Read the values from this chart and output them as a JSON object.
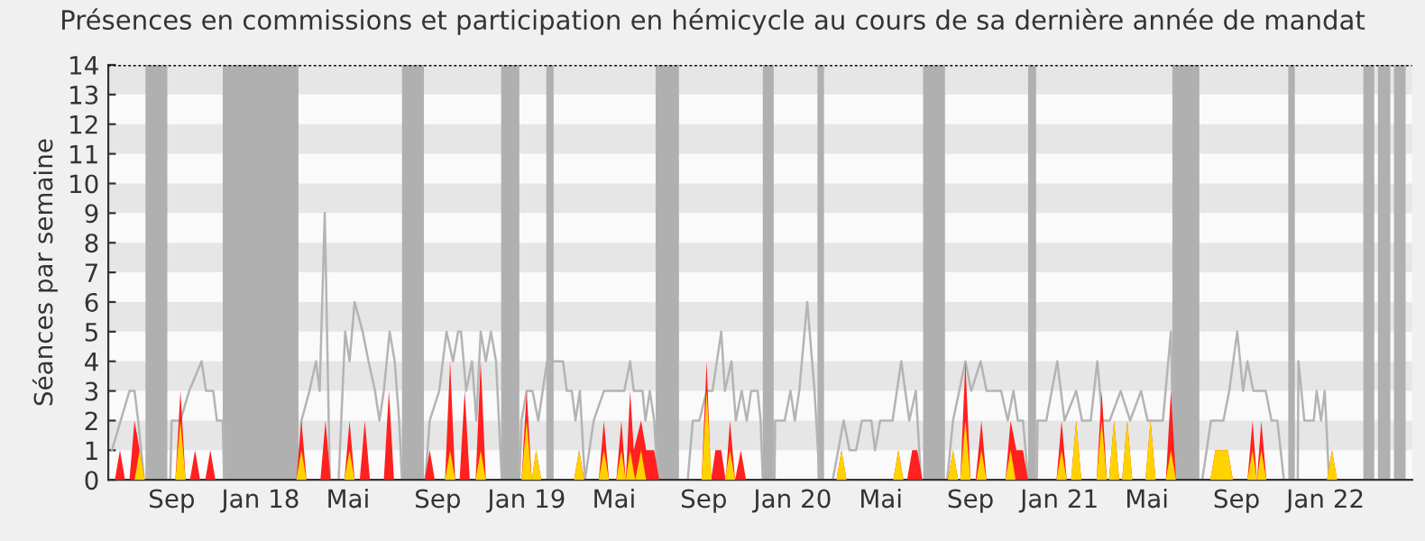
{
  "chart_data": {
    "type": "area",
    "title": "Présences en commissions et participation en hémicycle au cours de sa dernière année de mandat",
    "ylabel": "Séances par semaine",
    "xlim": [
      "2017-06-06",
      "2022-04-30"
    ],
    "ylim": [
      0,
      14
    ],
    "yticks": [
      0,
      1,
      2,
      3,
      4,
      5,
      6,
      7,
      8,
      9,
      10,
      11,
      12,
      13,
      14
    ],
    "xticks": [
      {
        "value": "2017-09-01",
        "label": "Sep"
      },
      {
        "value": "2018-01-01",
        "label": "Jan 18"
      },
      {
        "value": "2018-05-01",
        "label": "Mai"
      },
      {
        "value": "2018-09-01",
        "label": "Sep"
      },
      {
        "value": "2019-01-01",
        "label": "Jan 19"
      },
      {
        "value": "2019-05-01",
        "label": "Mai"
      },
      {
        "value": "2019-09-01",
        "label": "Sep"
      },
      {
        "value": "2020-01-01",
        "label": "Jan 20"
      },
      {
        "value": "2020-05-01",
        "label": "Mai"
      },
      {
        "value": "2020-09-01",
        "label": "Sep"
      },
      {
        "value": "2021-01-01",
        "label": "Jan 21"
      },
      {
        "value": "2021-05-01",
        "label": "Mai"
      },
      {
        "value": "2021-09-01",
        "label": "Sep"
      },
      {
        "value": "2022-01-01",
        "label": "Jan 22"
      }
    ],
    "bands": [
      {
        "axis": "y",
        "from": 1,
        "to": 2,
        "color": "#e6e6e6"
      },
      {
        "axis": "y",
        "from": 3,
        "to": 4,
        "color": "#e6e6e6"
      },
      {
        "axis": "y",
        "from": 5,
        "to": 6,
        "color": "#e6e6e6"
      },
      {
        "axis": "y",
        "from": 7,
        "to": 8,
        "color": "#e6e6e6"
      },
      {
        "axis": "y",
        "from": 9,
        "to": 10,
        "color": "#e6e6e6"
      },
      {
        "axis": "y",
        "from": 11,
        "to": 12,
        "color": "#e6e6e6"
      },
      {
        "axis": "y",
        "from": 13,
        "to": 14,
        "color": "#e6e6e6"
      },
      {
        "axis": "x",
        "from": "2017-07-27",
        "to": "2017-08-26",
        "color": "#b0b0b0"
      },
      {
        "axis": "x",
        "from": "2017-11-10",
        "to": "2018-02-22",
        "color": "#b0b0b0"
      },
      {
        "axis": "x",
        "from": "2018-07-14",
        "to": "2018-08-13",
        "color": "#b0b0b0"
      },
      {
        "axis": "x",
        "from": "2018-11-27",
        "to": "2018-12-22",
        "color": "#b0b0b0"
      },
      {
        "axis": "x",
        "from": "2019-01-28",
        "to": "2019-02-07",
        "color": "#b0b0b0"
      },
      {
        "axis": "x",
        "from": "2019-06-27",
        "to": "2019-07-29",
        "color": "#b0b0b0"
      },
      {
        "axis": "x",
        "from": "2019-11-21",
        "to": "2019-12-06",
        "color": "#b0b0b0"
      },
      {
        "axis": "x",
        "from": "2020-02-04",
        "to": "2020-02-13",
        "color": "#b0b0b0"
      },
      {
        "axis": "x",
        "from": "2020-06-28",
        "to": "2020-07-28",
        "color": "#b0b0b0"
      },
      {
        "axis": "x",
        "from": "2020-11-19",
        "to": "2020-11-30",
        "color": "#b0b0b0"
      },
      {
        "axis": "x",
        "from": "2021-06-05",
        "to": "2021-07-12",
        "color": "#b0b0b0"
      },
      {
        "axis": "x",
        "from": "2021-11-11",
        "to": "2021-11-20",
        "color": "#b0b0b0"
      },
      {
        "axis": "x",
        "from": "2022-02-22",
        "to": "2022-03-09",
        "color": "#b0b0b0"
      },
      {
        "axis": "x",
        "from": "2022-03-14",
        "to": "2022-03-31",
        "color": "#b0b0b0"
      },
      {
        "axis": "x",
        "from": "2022-04-05",
        "to": "2022-04-21",
        "color": "#b0b0b0"
      }
    ],
    "series": [
      {
        "type": "line",
        "color": "#b4b4b4",
        "x": [
          "2017-06-11",
          "2017-06-23",
          "2017-07-05",
          "2017-07-12",
          "2017-07-17",
          "2017-07-25",
          "2017-08-30",
          "2017-09-01",
          "2017-09-13",
          "2017-09-25",
          "2017-10-12",
          "2017-10-18",
          "2017-10-28",
          "2017-11-02",
          "2017-11-10",
          "2017-11-12",
          "2018-02-22",
          "2018-02-26",
          "2018-03-09",
          "2018-03-18",
          "2018-03-23",
          "2018-03-30",
          "2018-04-06",
          "2018-04-18",
          "2018-04-27",
          "2018-05-03",
          "2018-05-10",
          "2018-05-21",
          "2018-05-29",
          "2018-06-07",
          "2018-06-13",
          "2018-06-19",
          "2018-06-27",
          "2018-07-04",
          "2018-07-10",
          "2018-07-14",
          "2018-08-15",
          "2018-08-21",
          "2018-09-03",
          "2018-09-13",
          "2018-09-22",
          "2018-09-29",
          "2018-10-03",
          "2018-10-10",
          "2018-10-18",
          "2018-10-24",
          "2018-10-30",
          "2018-11-06",
          "2018-11-13",
          "2018-11-20",
          "2018-11-28",
          "2018-12-22",
          "2018-12-25",
          "2019-01-01",
          "2019-01-09",
          "2019-01-17",
          "2019-01-29",
          "2019-02-11",
          "2019-02-20",
          "2019-02-25",
          "2019-03-04",
          "2019-03-09",
          "2019-03-15",
          "2019-03-22",
          "2019-04-03",
          "2019-04-17",
          "2019-05-15",
          "2019-05-23",
          "2019-05-28",
          "2019-06-09",
          "2019-06-13",
          "2019-06-19",
          "2019-06-25",
          "2019-06-30",
          "2019-08-10",
          "2019-08-17",
          "2019-08-26",
          "2019-09-05",
          "2019-09-13",
          "2019-09-25",
          "2019-09-30",
          "2019-10-09",
          "2019-10-15",
          "2019-10-23",
          "2019-10-30",
          "2019-11-05",
          "2019-11-14",
          "2019-11-18",
          "2019-11-21",
          "2019-12-07",
          "2019-12-08",
          "2019-12-21",
          "2019-12-29",
          "2020-01-04",
          "2020-01-10",
          "2020-01-21",
          "2020-01-31",
          "2020-02-07",
          "2020-02-25",
          "2020-03-11",
          "2020-03-19",
          "2020-03-28",
          "2020-04-05",
          "2020-04-18",
          "2020-04-23",
          "2020-04-30",
          "2020-05-17",
          "2020-05-29",
          "2020-06-09",
          "2020-06-18",
          "2020-06-25",
          "2020-07-31",
          "2020-08-08",
          "2020-08-25",
          "2020-09-02",
          "2020-09-15",
          "2020-09-23",
          "2020-10-13",
          "2020-10-22",
          "2020-10-30",
          "2020-11-05",
          "2020-11-12",
          "2020-11-19",
          "2020-12-01",
          "2020-12-02",
          "2020-12-14",
          "2020-12-29",
          "2021-01-08",
          "2021-01-24",
          "2021-02-01",
          "2021-02-13",
          "2021-02-22",
          "2021-03-01",
          "2021-03-11",
          "2021-03-26",
          "2021-04-08",
          "2021-04-23",
          "2021-05-02",
          "2021-05-23",
          "2021-06-03",
          "2021-06-07",
          "2021-07-16",
          "2021-07-28",
          "2021-08-14",
          "2021-08-22",
          "2021-09-02",
          "2021-09-10",
          "2021-09-16",
          "2021-09-24",
          "2021-10-11",
          "2021-10-19",
          "2021-10-27",
          "2021-11-05",
          "2021-11-24",
          "2021-11-25",
          "2021-12-03",
          "2021-12-16",
          "2021-12-20",
          "2021-12-26",
          "2021-12-31",
          "2022-01-06"
        ],
        "values": [
          1,
          2,
          3,
          3,
          2,
          0,
          0,
          2,
          2,
          3,
          4,
          3,
          3,
          2,
          2,
          0,
          0,
          2,
          3,
          4,
          3,
          9,
          0,
          0,
          5,
          4,
          6,
          5,
          4,
          3,
          2,
          3,
          5,
          4,
          2,
          0,
          0,
          2,
          3,
          5,
          4,
          5,
          5,
          3,
          4,
          2,
          5,
          4,
          5,
          4,
          0,
          0,
          2,
          3,
          3,
          2,
          4,
          4,
          4,
          3,
          3,
          2,
          3,
          0,
          2,
          3,
          3,
          4,
          3,
          3,
          2,
          3,
          2,
          0,
          0,
          2,
          2,
          3,
          3,
          5,
          3,
          4,
          2,
          3,
          2,
          3,
          3,
          2,
          0,
          0,
          2,
          2,
          3,
          2,
          3,
          6,
          3,
          0,
          0,
          2,
          1,
          1,
          2,
          2,
          1,
          2,
          2,
          4,
          2,
          3,
          0,
          0,
          2,
          4,
          3,
          4,
          3,
          3,
          2,
          3,
          2,
          2,
          0,
          0,
          2,
          2,
          4,
          2,
          3,
          2,
          2,
          4,
          2,
          2,
          3,
          2,
          3,
          2,
          2,
          5,
          0,
          0,
          2,
          2,
          3,
          5,
          3,
          4,
          3,
          3,
          2,
          2,
          0,
          0,
          4,
          2,
          2,
          3,
          2,
          3,
          0
        ]
      },
      {
        "color": "#ff2020",
        "x": [
          "2017-06-15",
          "2017-06-22",
          "2017-06-29",
          "2017-07-05",
          "2017-07-12",
          "2017-07-19",
          "2017-07-26",
          "2017-09-06",
          "2017-09-13",
          "2017-09-20",
          "2017-09-26",
          "2017-10-03",
          "2017-10-10",
          "2017-10-17",
          "2017-10-24",
          "2017-10-31",
          "2018-02-19",
          "2018-02-26",
          "2018-03-05",
          "2018-03-24",
          "2018-03-31",
          "2018-04-07",
          "2018-04-26",
          "2018-05-03",
          "2018-05-10",
          "2018-05-17",
          "2018-05-24",
          "2018-05-31",
          "2018-06-19",
          "2018-06-26",
          "2018-07-03",
          "2018-08-14",
          "2018-08-21",
          "2018-08-28",
          "2018-09-11",
          "2018-09-18",
          "2018-09-25",
          "2018-10-01",
          "2018-10-08",
          "2018-10-15",
          "2018-10-23",
          "2018-10-30",
          "2018-11-06",
          "2018-12-25",
          "2019-01-01",
          "2019-01-08",
          "2019-01-14",
          "2019-01-21",
          "2019-03-07",
          "2019-03-14",
          "2019-03-21",
          "2019-04-10",
          "2019-04-17",
          "2019-04-24",
          "2019-05-04",
          "2019-05-11",
          "2019-05-17",
          "2019-05-23",
          "2019-05-28",
          "2019-06-07",
          "2019-06-14",
          "2019-06-25",
          "2019-07-02",
          "2019-08-29",
          "2019-09-05",
          "2019-09-11",
          "2019-09-17",
          "2019-09-25",
          "2019-10-01",
          "2019-10-07",
          "2019-10-14",
          "2019-10-22",
          "2019-10-29",
          "2020-03-01",
          "2020-03-08",
          "2020-03-15",
          "2020-05-18",
          "2020-05-25",
          "2020-06-01",
          "2020-06-06",
          "2020-06-13",
          "2020-06-20",
          "2020-06-27",
          "2020-08-01",
          "2020-08-08",
          "2020-08-15",
          "2020-08-18",
          "2020-08-25",
          "2020-09-01",
          "2020-09-08",
          "2020-09-16",
          "2020-09-23",
          "2020-10-19",
          "2020-10-26",
          "2020-11-03",
          "2020-11-12",
          "2020-11-19",
          "2020-12-28",
          "2021-01-04",
          "2021-01-11",
          "2021-01-17",
          "2021-01-24",
          "2021-01-31",
          "2021-02-21",
          "2021-02-28",
          "2021-03-07",
          "2021-03-10",
          "2021-03-17",
          "2021-03-24",
          "2021-03-28",
          "2021-04-04",
          "2021-04-11",
          "2021-04-29",
          "2021-05-06",
          "2021-05-13",
          "2021-05-27",
          "2021-06-03",
          "2021-06-10",
          "2021-07-27",
          "2021-08-03",
          "2021-08-20",
          "2021-08-27",
          "2021-09-16",
          "2021-09-23",
          "2021-09-29",
          "2021-10-05",
          "2021-10-12",
          "2022-01-03",
          "2022-01-10",
          "2022-01-17"
        ],
        "values": [
          0,
          1,
          0,
          0,
          2,
          1,
          0,
          0,
          3,
          0,
          0,
          1,
          0,
          0,
          1,
          0,
          0,
          2,
          0,
          0,
          2,
          0,
          0,
          2,
          0,
          0,
          2,
          0,
          0,
          3,
          0,
          0,
          1,
          0,
          0,
          4,
          0,
          0,
          3,
          0,
          0,
          4,
          0,
          0,
          3,
          0,
          1,
          0,
          0,
          1,
          0,
          0,
          2,
          0,
          0,
          2,
          0,
          3,
          1,
          2,
          1,
          1,
          0,
          0,
          4,
          0,
          1,
          1,
          0,
          2,
          0,
          1,
          0,
          0,
          1,
          0,
          0,
          1,
          0,
          0,
          1,
          1,
          0,
          0,
          1,
          0,
          0,
          4,
          0,
          0,
          2,
          0,
          0,
          2,
          1,
          1,
          0,
          0,
          2,
          0,
          0,
          2,
          0,
          0,
          3,
          0,
          0,
          2,
          0,
          0,
          2,
          0,
          0,
          2,
          0,
          0,
          3,
          0,
          0,
          1,
          1,
          0,
          0,
          2,
          0,
          2,
          0,
          0,
          1,
          0
        ]
      },
      {
        "color": "#ffd200",
        "x": [
          "2017-07-12",
          "2017-07-19",
          "2017-07-26",
          "2017-09-06",
          "2017-09-13",
          "2017-09-20",
          "2018-02-19",
          "2018-02-26",
          "2018-03-05",
          "2018-04-26",
          "2018-05-03",
          "2018-05-10",
          "2018-09-11",
          "2018-09-18",
          "2018-09-25",
          "2018-10-23",
          "2018-10-30",
          "2018-11-06",
          "2018-12-25",
          "2019-01-01",
          "2019-01-08",
          "2019-01-14",
          "2019-01-21",
          "2019-03-07",
          "2019-03-14",
          "2019-03-21",
          "2019-04-10",
          "2019-04-17",
          "2019-04-24",
          "2019-05-04",
          "2019-05-11",
          "2019-05-17",
          "2019-05-23",
          "2019-05-30",
          "2019-06-07",
          "2019-06-14",
          "2019-08-29",
          "2019-09-05",
          "2019-09-12",
          "2019-09-30",
          "2019-10-07",
          "2019-10-14",
          "2020-03-01",
          "2020-03-08",
          "2020-03-15",
          "2020-05-18",
          "2020-05-25",
          "2020-06-01",
          "2020-08-01",
          "2020-08-08",
          "2020-08-15",
          "2020-08-18",
          "2020-08-25",
          "2020-09-01",
          "2020-09-09",
          "2020-09-16",
          "2020-09-23",
          "2020-10-19",
          "2020-10-26",
          "2020-11-02",
          "2020-12-28",
          "2021-01-04",
          "2021-01-11",
          "2021-01-17",
          "2021-01-24",
          "2021-01-31",
          "2021-02-21",
          "2021-02-28",
          "2021-03-07",
          "2021-03-10",
          "2021-03-17",
          "2021-03-24",
          "2021-03-28",
          "2021-04-04",
          "2021-04-11",
          "2021-04-29",
          "2021-05-06",
          "2021-05-13",
          "2021-05-27",
          "2021-06-03",
          "2021-06-10",
          "2021-07-27",
          "2021-08-03",
          "2021-08-20",
          "2021-08-27",
          "2021-09-16",
          "2021-09-23",
          "2021-09-29",
          "2021-10-05",
          "2021-10-12",
          "2022-01-03",
          "2022-01-10",
          "2022-01-17"
        ],
        "values": [
          0,
          1,
          0,
          0,
          2,
          0,
          0,
          1,
          0,
          0,
          1,
          0,
          0,
          1,
          0,
          0,
          1,
          0,
          0,
          2,
          0,
          1,
          0,
          0,
          1,
          0,
          0,
          1,
          0,
          0,
          1,
          0,
          1,
          0,
          1,
          0,
          0,
          3,
          0,
          0,
          1,
          0,
          0,
          1,
          0,
          0,
          1,
          0,
          0,
          1,
          0,
          0,
          2,
          0,
          0,
          1,
          0,
          0,
          1,
          0,
          0,
          1,
          0,
          0,
          2,
          0,
          0,
          2,
          0,
          0,
          2,
          0,
          0,
          2,
          0,
          0,
          2,
          0,
          0,
          1,
          0,
          0,
          1,
          1,
          0,
          0,
          1,
          0,
          1,
          0,
          0,
          1,
          0
        ]
      }
    ]
  }
}
